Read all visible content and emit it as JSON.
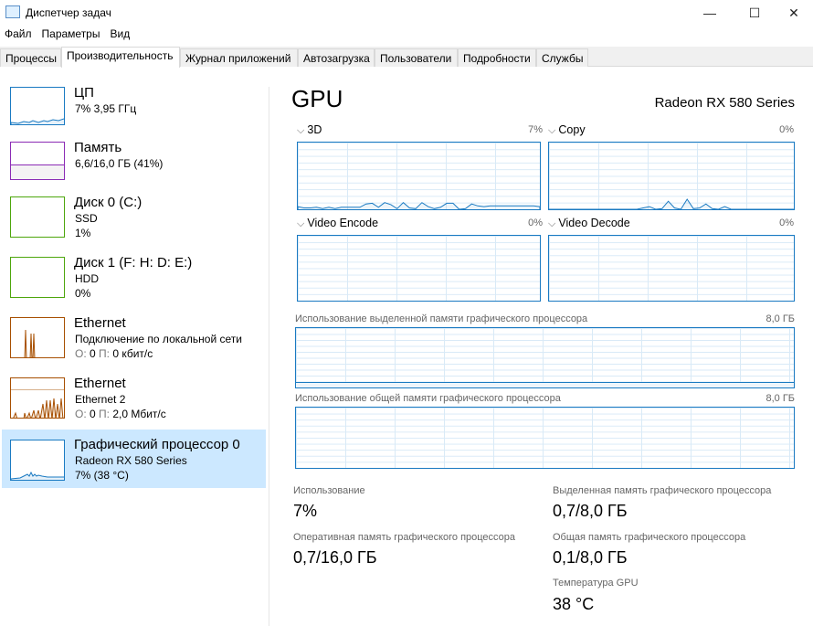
{
  "window": {
    "title": "Диспетчер задач",
    "minimize": "—",
    "maximize": "☐",
    "close": "✕"
  },
  "menu": [
    "Файл",
    "Параметры",
    "Вид"
  ],
  "tabs": [
    "Процессы",
    "Производительность",
    "Журнал приложений",
    "Автозагрузка",
    "Пользователи",
    "Подробности",
    "Службы"
  ],
  "active_tab": "Производительность",
  "sidebar": [
    {
      "name": "ЦП",
      "l1": "7% 3,95 ГГц",
      "color": "#1a7ac2"
    },
    {
      "name": "Память",
      "l1": "6,6/16,0 ГБ (41%)",
      "color": "#8b2bb5",
      "fill_pct": 41
    },
    {
      "name": "Диск 0 (C:)",
      "l1": "SSD",
      "l2": "1%",
      "color": "#4da60c"
    },
    {
      "name": "Диск 1 (F: H: D: E:)",
      "l1": "HDD",
      "l2": "0%",
      "color": "#4da60c"
    },
    {
      "name": "Ethernet",
      "l1": "Подключение по локальной сети",
      "l2a": "О:",
      "l2b": " 0 ",
      "l2c": "П:",
      "l2d": " 0 кбит/с",
      "color": "#a74f01"
    },
    {
      "name": "Ethernet",
      "l1": "Ethernet 2",
      "l2a": "О:",
      "l2b": " 0 ",
      "l2c": "П:",
      "l2d": " 2,0 Мбит/с",
      "color": "#a74f01"
    },
    {
      "name": "Графический процессор 0",
      "l1": "Radeon RX 580 Series",
      "l2": "7%  (38 °C)",
      "color": "#1a7ac2",
      "selected": true
    }
  ],
  "main": {
    "title": "GPU",
    "model": "Radeon RX 580 Series",
    "engines": [
      {
        "label": "3D",
        "pct": "7%",
        "series": [
          4,
          2,
          2,
          3,
          1,
          3,
          1,
          3,
          3,
          3,
          3,
          8,
          9,
          3,
          10,
          7,
          1,
          10,
          2,
          1,
          10,
          4,
          1,
          3,
          9,
          9,
          0,
          1,
          8,
          5,
          4,
          5,
          5,
          5,
          5,
          5,
          5,
          5,
          5,
          4
        ]
      },
      {
        "label": "Copy",
        "pct": "0%",
        "series": [
          0,
          0,
          0,
          0,
          0,
          0,
          0,
          0,
          0,
          0,
          0,
          0,
          0,
          0,
          0,
          2,
          4,
          0,
          1,
          12,
          2,
          0,
          15,
          1,
          2,
          8,
          1,
          0,
          4,
          0,
          0,
          0,
          0,
          0,
          0,
          0,
          0,
          0,
          0,
          0
        ]
      },
      {
        "label": "Video Encode",
        "pct": "0%"
      },
      {
        "label": "Video Decode",
        "pct": "0%"
      }
    ],
    "dedicated": {
      "label": "Использование выделенной памяти графического процессора",
      "max": "8,0 ГБ",
      "used_fraction": 0.0875
    },
    "shared": {
      "label": "Использование общей памяти графического процессора",
      "max": "8,0 ГБ",
      "used_fraction": 0.0125
    },
    "stats": [
      {
        "label": "Использование",
        "value": "7%"
      },
      {
        "label": "Выделенная память графического процессора",
        "value": "0,7/8,0 ГБ"
      },
      {
        "label": "Оперативная память графического процессора",
        "value": "0,7/16,0 ГБ"
      },
      {
        "label": "Общая память графического процессора",
        "value": "0,1/8,0 ГБ"
      },
      {
        "label": "Температура GPU",
        "value": "38 °C"
      }
    ]
  }
}
